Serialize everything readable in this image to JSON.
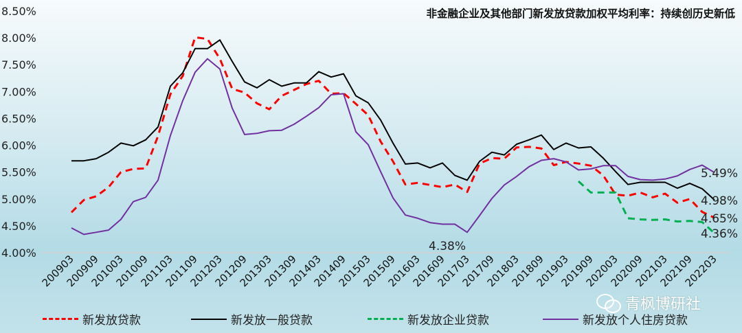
{
  "chart_data": {
    "type": "line",
    "title": "非金融企业及其他部门新发放贷款加权平均利率：持续创历史新低",
    "xlabel": "",
    "ylabel": "",
    "ylim": [
      4.0,
      8.5
    ],
    "yticks": [
      "4.00%",
      "4.50%",
      "5.00%",
      "5.50%",
      "6.00%",
      "6.50%",
      "7.00%",
      "7.50%",
      "8.00%",
      "8.50%"
    ],
    "grid": false,
    "legend_position": "bottom",
    "x": [
      "200903",
      "200906",
      "200909",
      "200912",
      "201003",
      "201006",
      "201009",
      "201012",
      "201103",
      "201106",
      "201109",
      "201112",
      "201203",
      "201206",
      "201209",
      "201212",
      "201303",
      "201306",
      "201309",
      "201312",
      "201403",
      "201406",
      "201409",
      "201412",
      "201503",
      "201506",
      "201509",
      "201512",
      "201603",
      "201606",
      "201609",
      "201612",
      "201703",
      "201706",
      "201709",
      "201712",
      "201803",
      "201806",
      "201809",
      "201812",
      "201903",
      "201906",
      "201909",
      "201912",
      "202003",
      "202006",
      "202009",
      "202012",
      "202103",
      "202106",
      "202109",
      "202112",
      "202203"
    ],
    "xticks": [
      "200903",
      "200909",
      "201003",
      "201009",
      "201103",
      "201109",
      "201203",
      "201209",
      "201303",
      "201309",
      "201403",
      "201409",
      "201503",
      "201509",
      "201603",
      "201609",
      "201703",
      "201709",
      "201803",
      "201809",
      "201903",
      "201909",
      "202003",
      "202009",
      "202103",
      "202109",
      "202203"
    ],
    "series": [
      {
        "name": "新发放贷款",
        "color": "#ff0000",
        "style": "dashed",
        "values": [
          4.75,
          4.98,
          5.05,
          5.22,
          5.5,
          5.56,
          5.57,
          6.17,
          6.95,
          7.29,
          8.01,
          7.98,
          7.61,
          7.05,
          6.98,
          6.78,
          6.67,
          6.92,
          7.03,
          7.14,
          7.2,
          6.96,
          6.97,
          6.77,
          6.56,
          6.07,
          5.7,
          5.27,
          5.3,
          5.26,
          5.22,
          5.27,
          5.13,
          5.66,
          5.76,
          5.75,
          5.96,
          5.97,
          5.94,
          5.63,
          5.69,
          5.66,
          5.62,
          5.44,
          5.08,
          5.06,
          5.12,
          5.03,
          5.1,
          4.93,
          5.0,
          4.76,
          4.65
        ]
      },
      {
        "name": "新发放一般贷款",
        "color": "#000000",
        "style": "solid",
        "values": [
          5.71,
          5.71,
          5.75,
          5.87,
          6.04,
          5.99,
          6.1,
          6.34,
          7.1,
          7.35,
          7.8,
          7.8,
          7.96,
          7.56,
          7.18,
          7.07,
          7.22,
          7.1,
          7.16,
          7.16,
          7.37,
          7.27,
          7.33,
          6.92,
          6.79,
          6.47,
          6.04,
          5.65,
          5.67,
          5.58,
          5.67,
          5.44,
          5.35,
          5.7,
          5.87,
          5.82,
          6.02,
          6.1,
          6.19,
          5.92,
          6.04,
          5.95,
          5.97,
          5.76,
          5.51,
          5.27,
          5.31,
          5.31,
          5.31,
          5.2,
          5.29,
          5.19,
          4.98
        ]
      },
      {
        "name": "新发放企业贷款",
        "color": "#00b050",
        "style": "dashed",
        "values": [
          null,
          null,
          null,
          null,
          null,
          null,
          null,
          null,
          null,
          null,
          null,
          null,
          null,
          null,
          null,
          null,
          null,
          null,
          null,
          null,
          null,
          null,
          null,
          null,
          null,
          null,
          null,
          null,
          null,
          null,
          null,
          null,
          null,
          null,
          null,
          null,
          null,
          null,
          null,
          null,
          null,
          5.33,
          5.12,
          5.12,
          5.12,
          4.64,
          4.62,
          4.61,
          4.62,
          4.58,
          4.59,
          4.57,
          4.36
        ]
      },
      {
        "name": "新发放个人住房贷款",
        "color": "#7030a0",
        "style": "solid",
        "values": [
          4.46,
          4.34,
          4.38,
          4.42,
          4.62,
          4.95,
          5.03,
          5.35,
          6.18,
          6.83,
          7.36,
          7.61,
          7.42,
          6.69,
          6.2,
          6.22,
          6.27,
          6.28,
          6.39,
          6.54,
          6.7,
          6.94,
          6.96,
          6.25,
          6.01,
          5.51,
          5.02,
          4.7,
          4.64,
          4.56,
          4.53,
          4.53,
          4.38,
          4.69,
          5.01,
          5.26,
          5.42,
          5.6,
          5.72,
          5.75,
          5.69,
          5.54,
          5.56,
          5.62,
          5.62,
          5.42,
          5.36,
          5.35,
          5.37,
          5.43,
          5.55,
          5.63,
          5.49
        ]
      }
    ],
    "annotations": [
      {
        "text": "5.49%",
        "x": "202203",
        "series": "新发放个人住房贷款"
      },
      {
        "text": "4.98%",
        "x": "202203",
        "series": "新发放一般贷款"
      },
      {
        "text": "4.65%",
        "x": "202203",
        "series": "新发放贷款"
      },
      {
        "text": "4.36%",
        "x": "202203",
        "series": "新发放企业贷款"
      },
      {
        "text": "4.38%",
        "x": "201703",
        "series": "新发放个人住房贷款"
      }
    ]
  },
  "watermark": "青枫博研社"
}
